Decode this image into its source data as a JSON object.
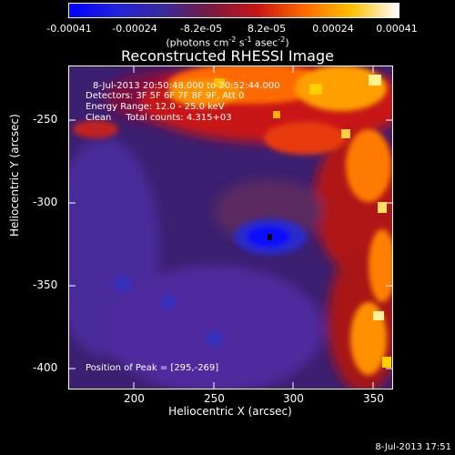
{
  "colorbar": {
    "ticks": [
      "-0.00041",
      "-0.00024",
      "-8.2e-05",
      "8.2e-05",
      "0.00024",
      "0.00041"
    ],
    "units_text": "(photons cm",
    "units_exp1": "-2",
    "units_mid": " s",
    "units_exp2": "-1",
    "units_tail": " asec",
    "units_exp3": "-2",
    "units_close": ")",
    "colors": [
      "#0000ff",
      "#2222dd",
      "#3a2a9a",
      "#7a1a40",
      "#c81414",
      "#ff6a00",
      "#ffc000",
      "#ffffff"
    ]
  },
  "title": "Reconstructed RHESSI Image",
  "annotations": {
    "line1": "8-Jul-2013 20:50:48.000 to 20:52:44.000",
    "line2": "Detectors: 3F 5F 6F 7F 8F 9F, Att 0",
    "line3": "Energy Range: 12.0 - 25.0 keV",
    "line4_a": "Clean",
    "line4_b": "Total counts: 4.315+03",
    "peak": "Position of Peak = [295,-269]"
  },
  "axes": {
    "x_label": "Heliocentric X (arcsec)",
    "y_label": "Heliocentric Y (arcsec)",
    "x_ticks": [
      "200",
      "250",
      "300",
      "350"
    ],
    "y_ticks": [
      "-250",
      "-300",
      "-350",
      "-400"
    ]
  },
  "timestamp": "8-Jul-2013 17:51"
}
